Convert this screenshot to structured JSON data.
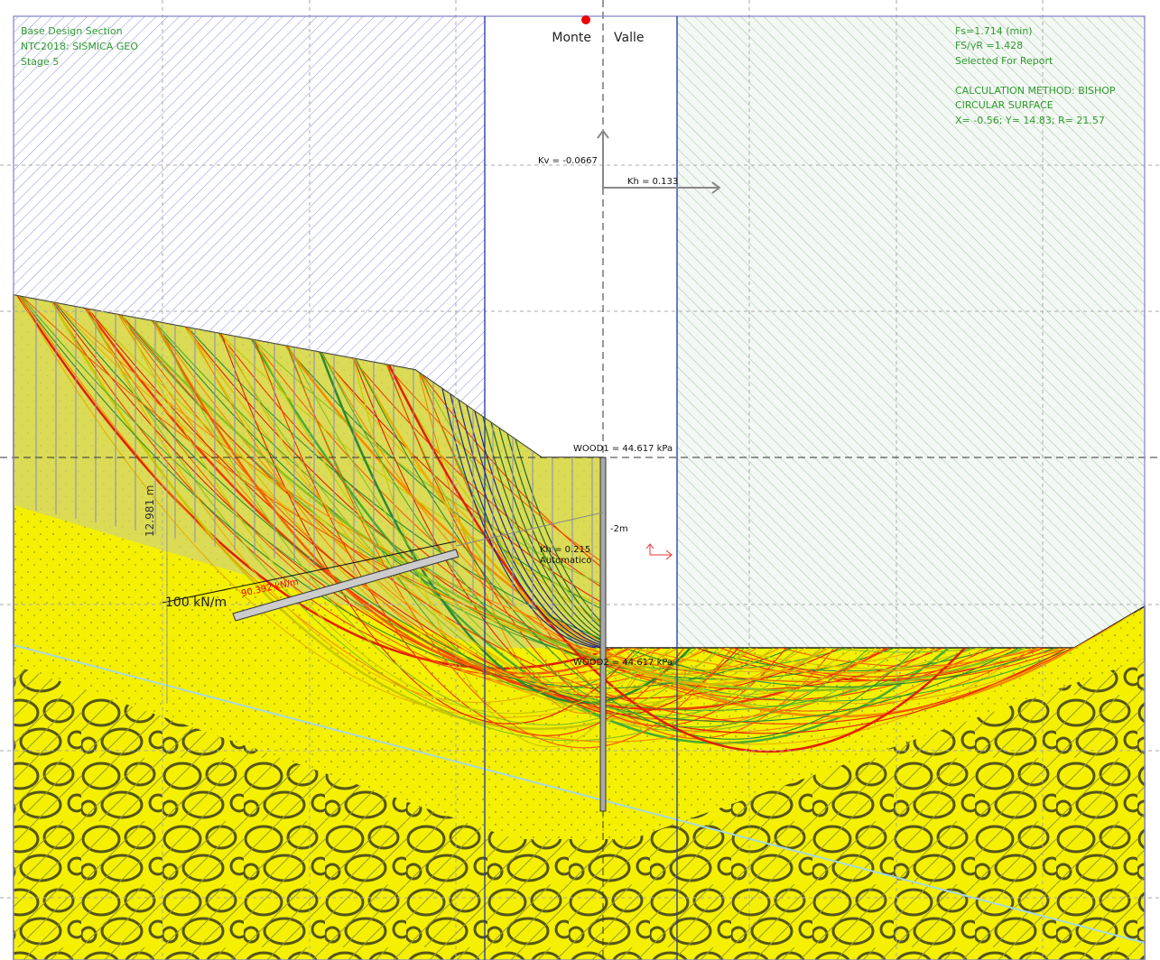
{
  "header": {
    "left": [
      "Base Design Section",
      "NTC2018: SISMICA GEO",
      "Stage 5"
    ],
    "right": [
      "Fs=1.714 (min)",
      "FS/γR =1.428",
      "Selected For Report",
      "CALCULATION METHOD: BISHOP",
      "CIRCULAR SURFACE",
      "X= -0.56; Y= 14.83; R= 21.57"
    ]
  },
  "sides": {
    "left": "Monte",
    "right": "Valle"
  },
  "loads": {
    "kv": "Kv = -0.0667",
    "kh": "Kh = 0.133",
    "kh_wall": "Kh = 0.215",
    "kh_mode": "Automatico"
  },
  "pressures": {
    "wood1": "WOOD1 = 44.617 kPa",
    "wood2": "WOOD2 = 44.617 kPa"
  },
  "dimensions": {
    "depth": "-2m",
    "height": "12.981 m"
  },
  "anchor": {
    "load": "100 kN/m",
    "force": "90.392 kN/m"
  }
}
